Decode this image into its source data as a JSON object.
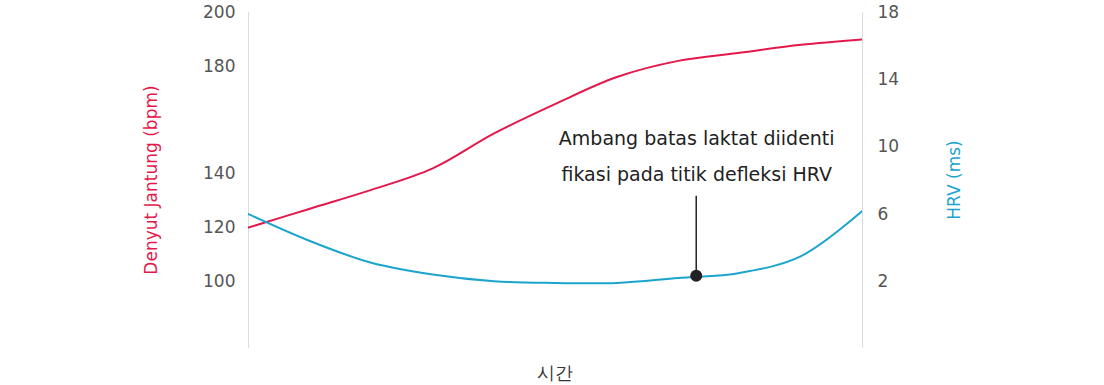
{
  "chart_data": {
    "type": "line",
    "x_label": "시간",
    "x": [
      0,
      1,
      2,
      3,
      4,
      5,
      6,
      7,
      8,
      9,
      10
    ],
    "xlim": [
      0,
      10
    ],
    "xticks": [],
    "ylim": [
      75,
      200
    ],
    "yticks": [
      100,
      120,
      140,
      180,
      200
    ],
    "y_label": "Denyut Jantung (bpm)",
    "y2lim": [
      -2,
      18
    ],
    "y2ticks": [
      2,
      6,
      10,
      14,
      18
    ],
    "y2_label": "HRV (ms)",
    "series": [
      {
        "name": "Denyut Jantung (bpm)",
        "color": "#e4194b",
        "axis": "y",
        "values": [
          120,
          127,
          134,
          142,
          155,
          166,
          176,
          182,
          185,
          188,
          190
        ]
      },
      {
        "name": "HRV (ms)",
        "color": "#1ba4cc",
        "axis": "y2",
        "values": [
          6,
          4.4,
          3.1,
          2.4,
          2.0,
          1.9,
          1.9,
          2.2,
          2.5,
          3.5,
          6.2
        ]
      }
    ],
    "annotations": [
      {
        "text": [
          "Ambang batas laktat diidenti",
          "fikasi pada titik defleksi HRV"
        ],
        "x": 7.3,
        "y": 2.3,
        "axis": "y2"
      }
    ]
  }
}
